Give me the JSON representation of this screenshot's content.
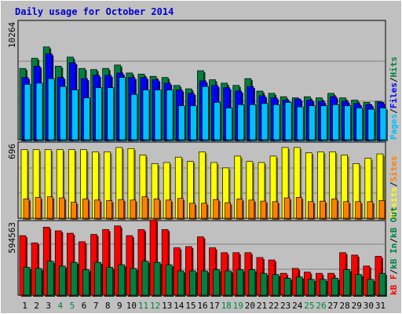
{
  "title": "Daily usage for October 2014",
  "colors": {
    "background": "#c0c0c0",
    "grid": "#808080",
    "hits": "#008040",
    "files": "#0000ff",
    "pages": "#00c0ff",
    "visits": "#ffff00",
    "sites": "#ff8000",
    "kbin": "#ff0000",
    "kbout": "#008040",
    "weekend": "#008040",
    "weekday": "#000000"
  },
  "chart_data": [
    {
      "type": "bar",
      "panel": "top",
      "scale_label": "10264",
      "ylim": [
        0,
        10264
      ],
      "categories": [
        "1",
        "2",
        "3",
        "4",
        "5",
        "6",
        "7",
        "8",
        "9",
        "10",
        "11",
        "12",
        "13",
        "14",
        "15",
        "16",
        "17",
        "18",
        "19",
        "20",
        "21",
        "22",
        "23",
        "24",
        "25",
        "26",
        "27",
        "28",
        "29",
        "30",
        "31"
      ],
      "weekend_days": [
        "4",
        "5",
        "11",
        "12",
        "18",
        "19",
        "25",
        "26"
      ],
      "legend": [
        "Pages",
        "/",
        "Files",
        "/",
        "Hits"
      ],
      "series": [
        {
          "name": "Hits",
          "values": [
            6300,
            7200,
            8200,
            6500,
            7300,
            6300,
            6200,
            6300,
            6600,
            5900,
            5800,
            5600,
            5500,
            4800,
            4500,
            6100,
            5300,
            5000,
            4800,
            5400,
            4300,
            4100,
            3800,
            3700,
            3800,
            3700,
            4100,
            3700,
            3500,
            3300,
            3400
          ]
        },
        {
          "name": "Files",
          "values": [
            5500,
            6500,
            7600,
            5500,
            6800,
            5400,
            5700,
            5700,
            5900,
            5500,
            5500,
            5300,
            5000,
            4400,
            4100,
            5200,
            4800,
            4600,
            4300,
            4700,
            3900,
            3700,
            3500,
            3600,
            3500,
            3400,
            3800,
            3400,
            3200,
            3100,
            3300
          ]
        },
        {
          "name": "Pages",
          "values": [
            4900,
            5000,
            5400,
            4700,
            4400,
            3700,
            4600,
            4600,
            5500,
            4000,
            4400,
            4400,
            4400,
            3000,
            3000,
            4700,
            3300,
            2800,
            3100,
            3100,
            3200,
            3100,
            3300,
            2900,
            3000,
            3000,
            3100,
            3000,
            2800,
            2700,
            2800
          ]
        }
      ]
    },
    {
      "type": "bar",
      "panel": "middle",
      "scale_label": "696",
      "ylim": [
        0,
        696
      ],
      "categories": [
        "1",
        "2",
        "3",
        "4",
        "5",
        "6",
        "7",
        "8",
        "9",
        "10",
        "11",
        "12",
        "13",
        "14",
        "15",
        "16",
        "17",
        "18",
        "19",
        "20",
        "21",
        "22",
        "23",
        "24",
        "25",
        "26",
        "27",
        "28",
        "29",
        "30",
        "31"
      ],
      "legend": [
        "Visits",
        "/",
        "Sites"
      ],
      "series": [
        {
          "name": "Visits",
          "values": [
            640,
            640,
            640,
            640,
            640,
            640,
            620,
            620,
            660,
            650,
            590,
            510,
            520,
            570,
            530,
            620,
            520,
            470,
            580,
            530,
            520,
            580,
            660,
            660,
            610,
            620,
            620,
            590,
            510,
            560,
            600
          ]
        },
        {
          "name": "Sites",
          "values": [
            180,
            195,
            200,
            190,
            150,
            180,
            170,
            165,
            175,
            170,
            200,
            180,
            170,
            185,
            140,
            140,
            175,
            145,
            180,
            170,
            160,
            155,
            190,
            195,
            155,
            160,
            180,
            155,
            155,
            155,
            165
          ]
        }
      ]
    },
    {
      "type": "bar",
      "panel": "bottom",
      "scale_label": "594563",
      "ylim": [
        0,
        594563
      ],
      "categories": [
        "1",
        "2",
        "3",
        "4",
        "5",
        "6",
        "7",
        "8",
        "9",
        "10",
        "11",
        "12",
        "13",
        "14",
        "15",
        "16",
        "17",
        "18",
        "19",
        "20",
        "21",
        "22",
        "23",
        "24",
        "25",
        "26",
        "27",
        "28",
        "29",
        "30",
        "31"
      ],
      "legend": [
        "kB F",
        "/",
        "kB In",
        "/",
        "kB Out"
      ],
      "series": [
        {
          "name": "kB In",
          "values": [
            490000,
            430000,
            560000,
            530000,
            510000,
            440000,
            500000,
            540000,
            570000,
            490000,
            540000,
            620000,
            540000,
            390000,
            400000,
            480000,
            390000,
            350000,
            350000,
            350000,
            310000,
            290000,
            180000,
            220000,
            190000,
            180000,
            180000,
            350000,
            330000,
            240000,
            320000
          ]
        },
        {
          "name": "kB Out",
          "values": [
            230000,
            220000,
            280000,
            240000,
            270000,
            210000,
            270000,
            230000,
            250000,
            220000,
            280000,
            270000,
            250000,
            200000,
            200000,
            200000,
            210000,
            200000,
            210000,
            210000,
            180000,
            170000,
            140000,
            150000,
            130000,
            130000,
            140000,
            210000,
            170000,
            130000,
            180000
          ]
        }
      ]
    }
  ]
}
